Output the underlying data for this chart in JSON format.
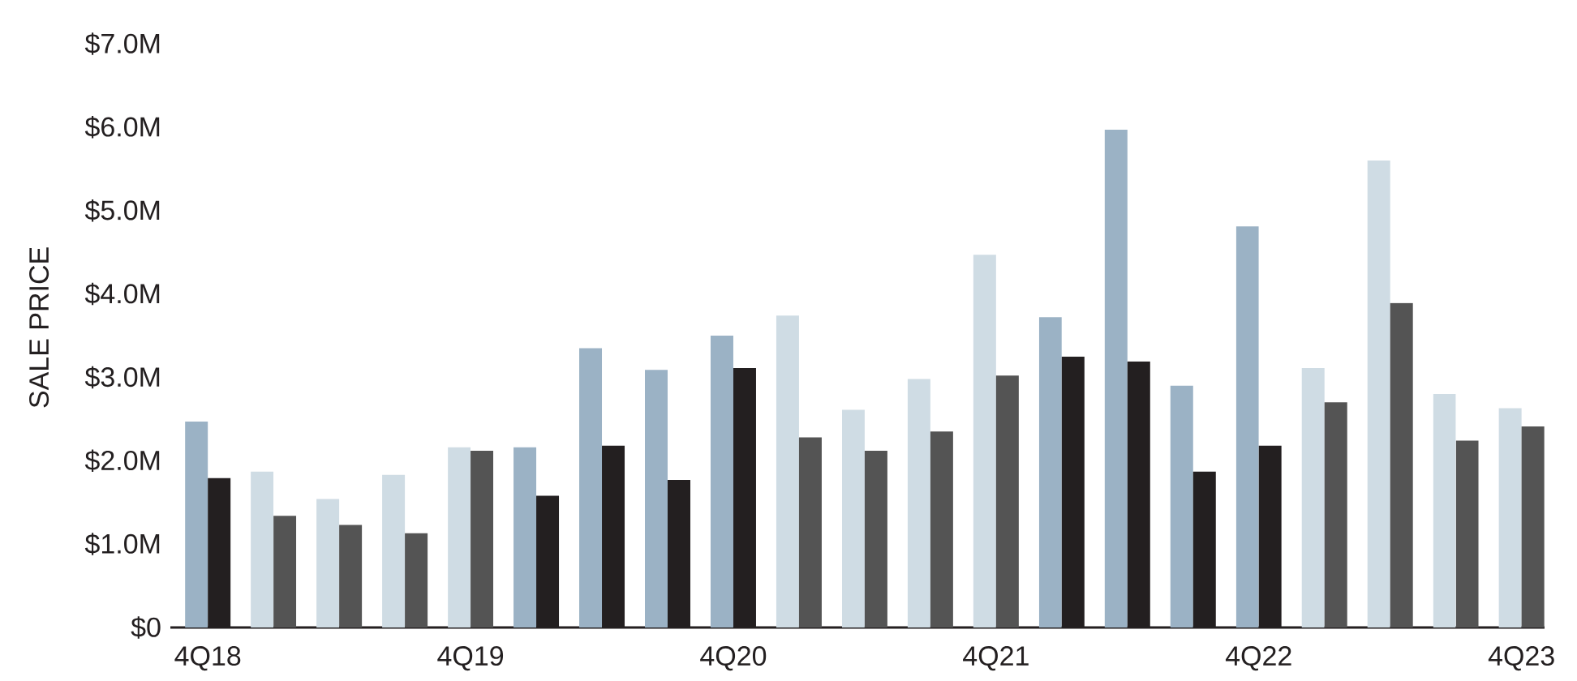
{
  "chart_data": {
    "type": "bar",
    "ylabel": "SALE PRICE",
    "categories": [
      "4Q18",
      null,
      null,
      null,
      "4Q19",
      null,
      null,
      null,
      "4Q20",
      null,
      null,
      null,
      "4Q21",
      null,
      null,
      null,
      "4Q22",
      null,
      null,
      null,
      "4Q23"
    ],
    "series": [
      {
        "values": [
          2.47,
          1.87,
          1.54,
          1.83,
          2.16,
          2.16,
          3.35,
          3.09,
          3.5,
          3.74,
          2.61,
          2.98,
          4.47,
          3.72,
          5.97,
          2.9,
          4.81,
          3.11,
          5.6,
          2.8,
          2.63
        ],
        "colors": [
          "#9bb2c5",
          "#cfdce4",
          "#cfdce4",
          "#cfdce4",
          "#cfdce4",
          "#9bb2c5",
          "#9bb2c5",
          "#9bb2c5",
          "#9bb2c5",
          "#cfdce4",
          "#cfdce4",
          "#cfdce4",
          "#cfdce4",
          "#9bb2c5",
          "#9bb2c5",
          "#9bb2c5",
          "#9bb2c5",
          "#cfdce4",
          "#cfdce4",
          "#cfdce4",
          "#cfdce4"
        ]
      },
      {
        "values": [
          1.79,
          1.34,
          1.23,
          1.13,
          2.12,
          1.58,
          2.18,
          1.77,
          3.11,
          2.28,
          2.12,
          2.35,
          3.02,
          3.25,
          3.19,
          1.87,
          2.18,
          2.7,
          3.89,
          2.24,
          2.41
        ],
        "colors": [
          "#231f20",
          "#545454",
          "#545454",
          "#545454",
          "#545454",
          "#231f20",
          "#231f20",
          "#231f20",
          "#231f20",
          "#545454",
          "#545454",
          "#545454",
          "#545454",
          "#231f20",
          "#231f20",
          "#231f20",
          "#231f20",
          "#545454",
          "#545454",
          "#545454",
          "#545454"
        ]
      }
    ],
    "ylim": [
      0,
      7
    ],
    "yticks": [
      {
        "value": 0,
        "label": "$0"
      },
      {
        "value": 1,
        "label": "$1.0M"
      },
      {
        "value": 2,
        "label": "$2.0M"
      },
      {
        "value": 3,
        "label": "$3.0M"
      },
      {
        "value": 4,
        "label": "$4.0M"
      },
      {
        "value": 5,
        "label": "$5.0M"
      },
      {
        "value": 6,
        "label": "$6.0M"
      },
      {
        "value": 7,
        "label": "$7.0M"
      }
    ]
  }
}
